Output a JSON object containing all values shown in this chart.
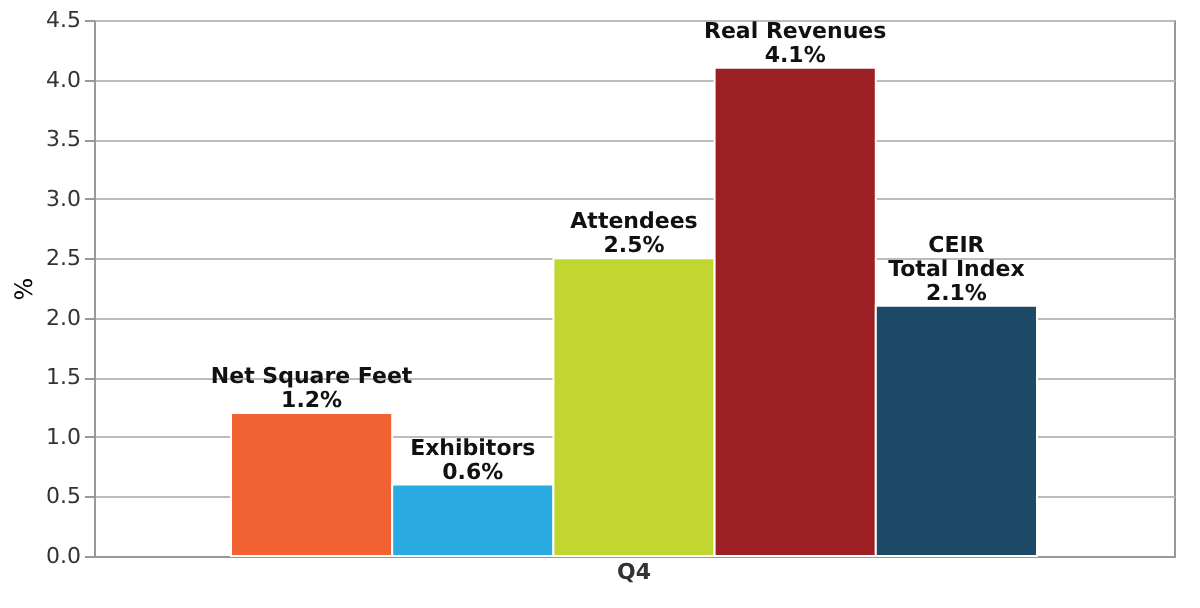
{
  "chart_data": {
    "type": "bar",
    "categories": [
      "Q4"
    ],
    "ylabel": "%",
    "ylim": [
      0,
      4.5
    ],
    "yticks": [
      {
        "value": 0,
        "label": "0.0"
      },
      0.5,
      {
        "value": 1,
        "label": "1.0"
      },
      1.5,
      {
        "value": 2,
        "label": "2.0"
      },
      2.5,
      {
        "value": 3,
        "label": "3.0"
      },
      3.5,
      {
        "value": 4,
        "label": "4.0"
      },
      4.5
    ],
    "grid": "y",
    "series": [
      {
        "name": "Net Square Feet",
        "color": "#f26131",
        "values": [
          1.2
        ],
        "value_labels": [
          "1.2%"
        ]
      },
      {
        "name": "Exhibitors",
        "color": "#29abe2",
        "values": [
          0.6
        ],
        "value_labels": [
          "0.6%"
        ]
      },
      {
        "name": "Attendees",
        "color": "#c1d631",
        "values": [
          2.5
        ],
        "value_labels": [
          "2.5%"
        ]
      },
      {
        "name": "Real Revenues",
        "color": "#9b1f23",
        "values": [
          4.1
        ],
        "value_labels": [
          "4.1%"
        ]
      },
      {
        "name": "CEIR Total Index",
        "color": "#1c4966",
        "values": [
          2.1
        ],
        "value_labels": [
          "2.1%"
        ]
      }
    ]
  }
}
